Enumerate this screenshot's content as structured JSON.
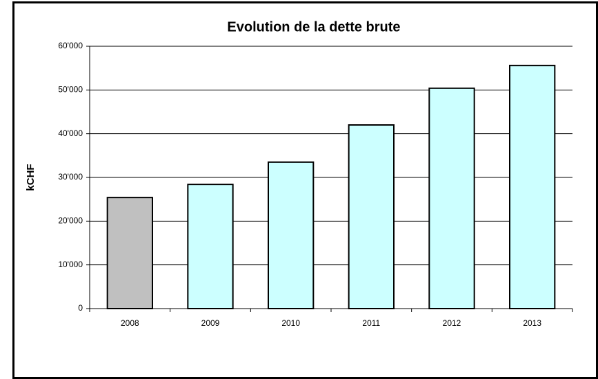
{
  "chart_data": {
    "type": "bar",
    "title": "Evolution de la dette brute",
    "ylabel": "kCHF",
    "categories": [
      "2008",
      "2009",
      "2010",
      "2011",
      "2012",
      "2013"
    ],
    "values": [
      25400,
      28400,
      33500,
      42000,
      50400,
      55600
    ],
    "colors": [
      "#c0c0c0",
      "#ccffff",
      "#ccffff",
      "#ccffff",
      "#ccffff",
      "#ccffff"
    ],
    "ylim": [
      0,
      60000
    ],
    "yticks": [
      0,
      {
        "value": 10000,
        "label": "10'000"
      },
      {
        "value": 20000,
        "label": "20'000"
      },
      {
        "value": 30000,
        "label": "30'000"
      },
      {
        "value": 40000,
        "label": "40'000"
      },
      {
        "value": 50000,
        "label": "50'000"
      },
      {
        "value": 60000,
        "label": "60'000"
      }
    ],
    "grid": true
  }
}
